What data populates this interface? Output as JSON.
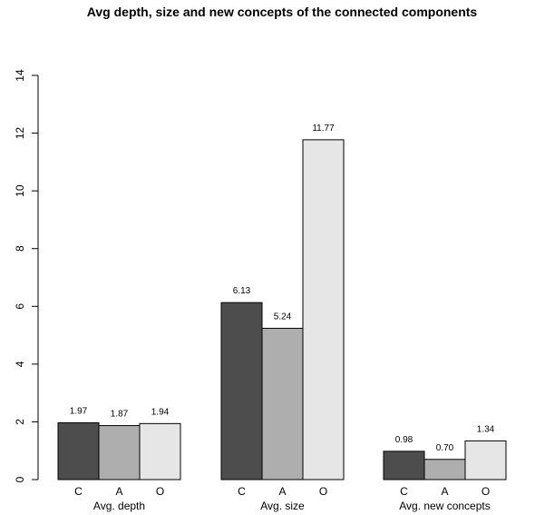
{
  "chart_data": {
    "type": "bar",
    "title": "Avg depth, size and new concepts of the connected components",
    "xlabel": "",
    "ylabel": "",
    "ylim": [
      0,
      14
    ],
    "yticks": [
      0,
      2,
      4,
      6,
      8,
      10,
      12,
      14
    ],
    "grid": false,
    "legend": "none",
    "groups": [
      "Avg. depth",
      "Avg. size",
      "Avg. new concepts"
    ],
    "bar_letters": [
      "C",
      "A",
      "O"
    ],
    "series": [
      {
        "values": [
          1.97,
          6.13,
          0.98
        ],
        "labels": [
          "1.97",
          "6.13",
          "0.98"
        ],
        "color": "#4d4d4d"
      },
      {
        "values": [
          1.87,
          5.24,
          0.7
        ],
        "labels": [
          "1.87",
          "5.24",
          "0.70"
        ],
        "color": "#aeaeae"
      },
      {
        "values": [
          1.94,
          11.77,
          1.34
        ],
        "labels": [
          "1.94",
          "11.77",
          "1.34"
        ],
        "color": "#e6e6e6"
      }
    ]
  }
}
